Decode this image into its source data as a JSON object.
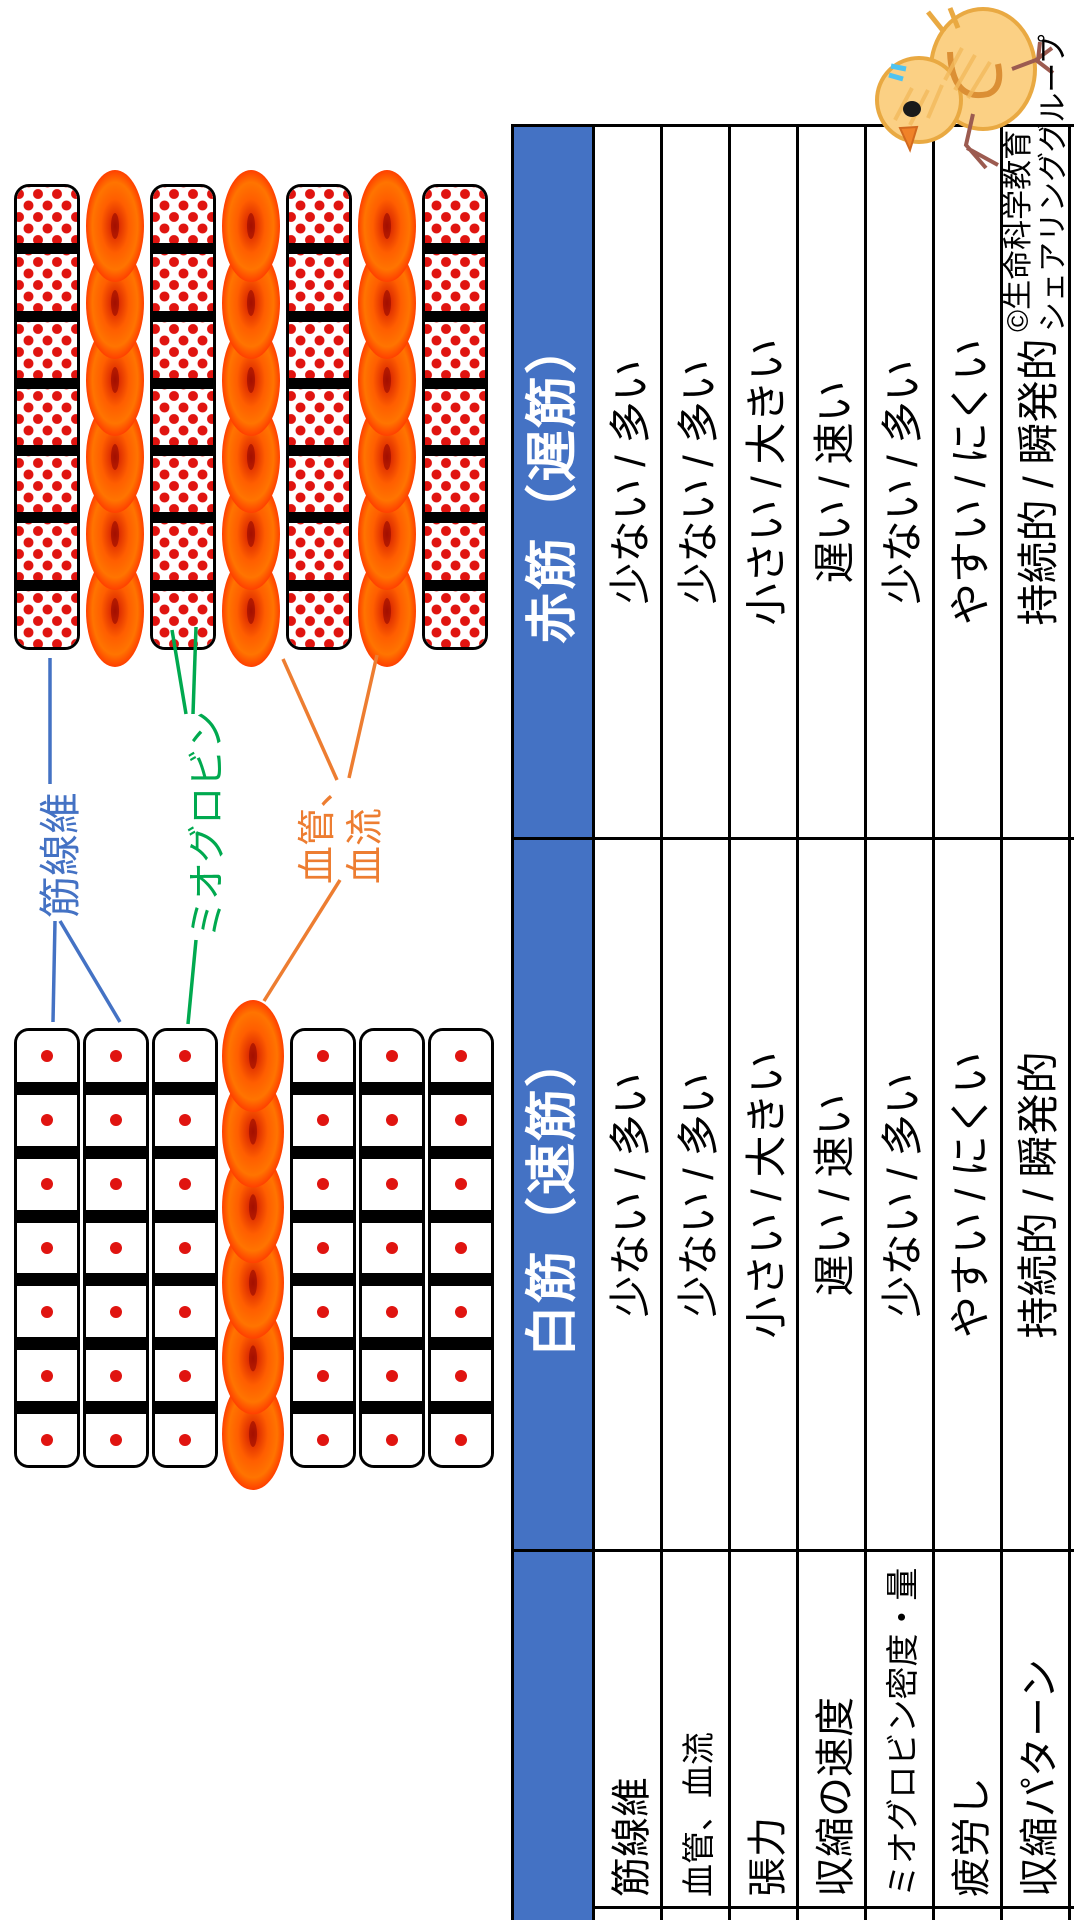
{
  "table": {
    "header": {
      "white_muscle": "白筋（速筋）",
      "red_muscle": "赤筋（遅筋）"
    },
    "rows": [
      {
        "label": "筋線維",
        "white": "少ない / 多い",
        "red": "少ない / 多い"
      },
      {
        "label": "血管、血流",
        "white": "少ない / 多い",
        "red": "少ない / 多い"
      },
      {
        "label": "張力",
        "white": "小さい / 大きい",
        "red": "小さい / 大きい"
      },
      {
        "label": "収縮の速度",
        "white": "遅い / 速い",
        "red": "遅い / 速い"
      },
      {
        "label": "ミオグロビン密度・量",
        "white": "少ない / 多い",
        "red": "少ない / 多い"
      },
      {
        "label": "疲労し",
        "white": "やすい / にくい",
        "red": "やすい / にくい"
      },
      {
        "label": "収縮パターン",
        "white": "持続的 / 瞬発的",
        "red": "持続的 / 瞬発的"
      }
    ]
  },
  "annotations": {
    "muscle_fiber": {
      "text": "筋線維",
      "color": "#4472C4"
    },
    "myoglobin": {
      "text": "ミオグロビン",
      "color": "#00A94F"
    },
    "vessel_line1": "血管、",
    "vessel_line2": "血流",
    "vessel_color": "#ED7D31"
  },
  "copyright": {
    "line1": "©生命科学教育",
    "line2": "シェアリンググループ"
  },
  "colors": {
    "header_blue": "#4472C4",
    "myoglobin_dot_red": "#E01410",
    "vessel_orange": "#FF5E00",
    "grid_black": "#000000"
  }
}
